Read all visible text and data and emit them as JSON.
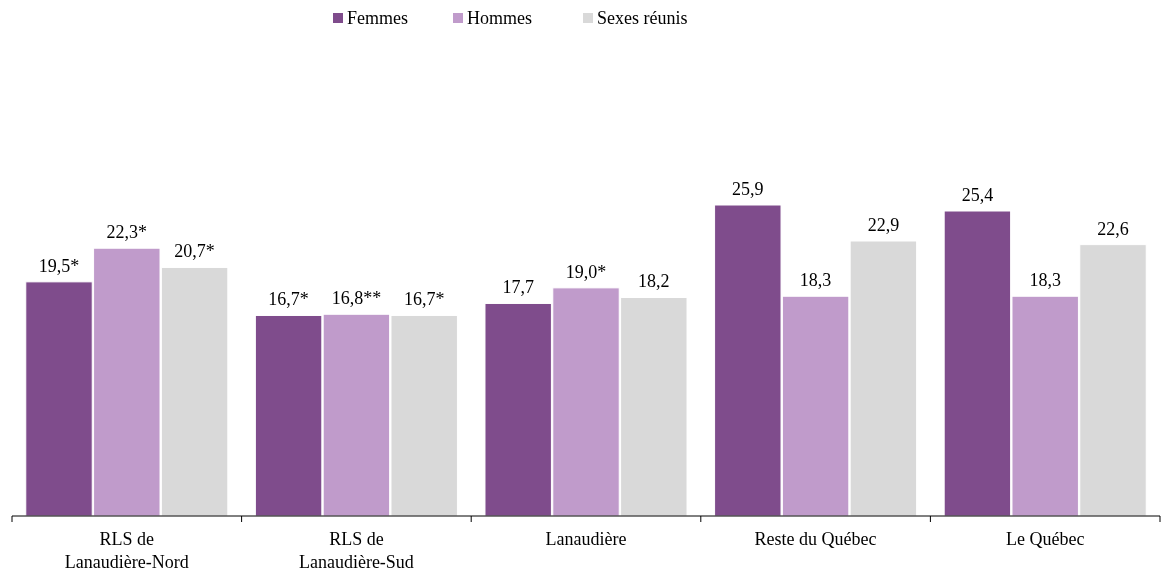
{
  "chart_data": {
    "type": "bar",
    "categories": [
      "RLS de Lanaudière-Nord",
      "RLS de Lanaudière-Sud",
      "Lanaudière",
      "Reste du Québec",
      "Le Québec"
    ],
    "series": [
      {
        "name": "Femmes",
        "color": "#7f4c8c",
        "values": [
          19.5,
          16.7,
          17.7,
          25.9,
          25.4
        ],
        "value_labels": [
          "19,5*",
          "16,7*",
          "17,7",
          "25,9",
          "25,4"
        ]
      },
      {
        "name": "Hommes",
        "color": "#c09bcb",
        "values": [
          22.3,
          16.8,
          19.0,
          18.3,
          18.3
        ],
        "value_labels": [
          "22,3*",
          "16,8**",
          "19,0*",
          "18,3",
          "18,3"
        ]
      },
      {
        "name": "Sexes réunis",
        "color": "#d9d9d9",
        "values": [
          20.7,
          16.7,
          18.2,
          22.9,
          22.6
        ],
        "value_labels": [
          "20,7*",
          "16,7*",
          "18,2",
          "22,9",
          "22,6"
        ]
      }
    ],
    "legend": "top"
  }
}
